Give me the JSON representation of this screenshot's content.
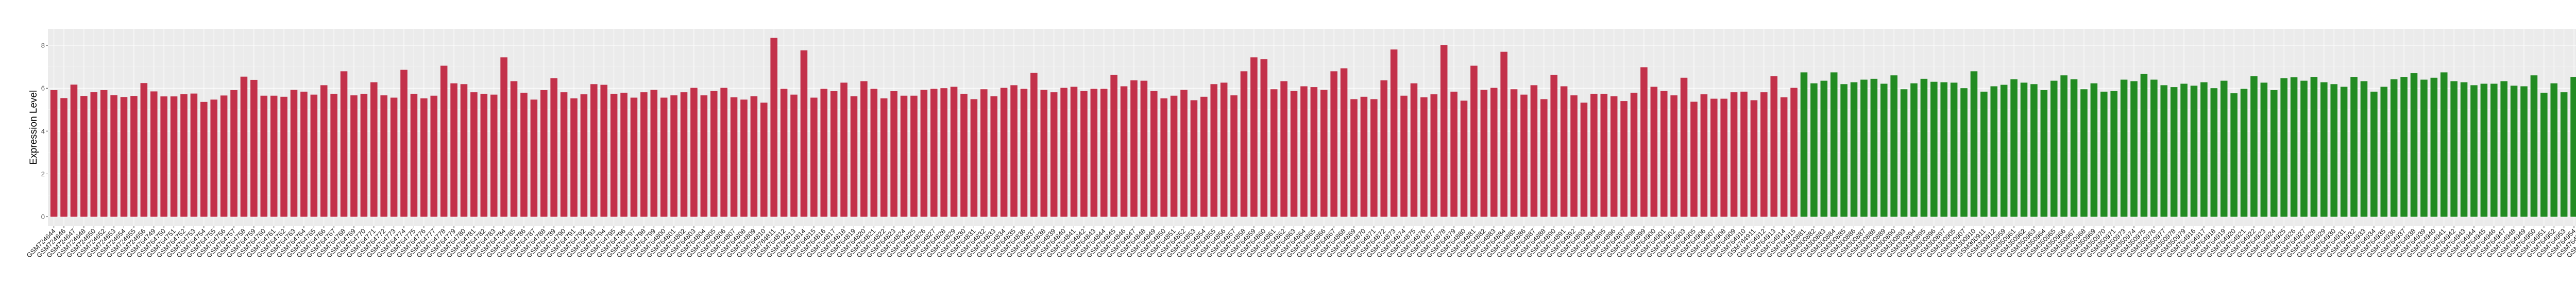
{
  "chart_data": {
    "type": "bar",
    "title": "",
    "xlabel": "",
    "ylabel": "Expression Level",
    "ylim": [
      -0.42,
      8.77
    ],
    "yticks": [
      0,
      2,
      4,
      6,
      8
    ],
    "grid": true,
    "panel_background": "#EBEBEB",
    "legend": "none",
    "color_groups": [
      {
        "color": "#C3314A",
        "from": "GSM724644",
        "to": "GSM764915"
      },
      {
        "color": "#228B22",
        "from": "GSM300881",
        "to": "GSM80749"
      }
    ],
    "categories": [
      "GSM724644",
      "GSM724646",
      "GSM724647",
      "GSM724648",
      "GSM724650",
      "GSM724652",
      "GSM724653",
      "GSM724654",
      "GSM724655",
      "GSM724656",
      "GSM764749",
      "GSM764750",
      "GSM764751",
      "GSM764752",
      "GSM764753",
      "GSM764754",
      "GSM764755",
      "GSM764756",
      "GSM764757",
      "GSM764758",
      "GSM764759",
      "GSM764760",
      "GSM764761",
      "GSM764762",
      "GSM764763",
      "GSM764764",
      "GSM764765",
      "GSM764766",
      "GSM764767",
      "GSM764768",
      "GSM764769",
      "GSM764770",
      "GSM764771",
      "GSM764772",
      "GSM764773",
      "GSM764774",
      "GSM764775",
      "GSM764776",
      "GSM764777",
      "GSM764778",
      "GSM764779",
      "GSM764780",
      "GSM764781",
      "GSM764782",
      "GSM764783",
      "GSM764784",
      "GSM764785",
      "GSM764786",
      "GSM764787",
      "GSM764788",
      "GSM764789",
      "GSM764790",
      "GSM764791",
      "GSM764792",
      "GSM764793",
      "GSM764794",
      "GSM764795",
      "GSM764796",
      "GSM764797",
      "GSM764798",
      "GSM764799",
      "GSM764800",
      "GSM764801",
      "GSM764802",
      "GSM764803",
      "GSM764804",
      "GSM764805",
      "GSM764806",
      "GSM764807",
      "GSM764808",
      "GSM764809",
      "GSM764810",
      "GSM764811",
      "GSM764812",
      "GSM764813",
      "GSM764814",
      "GSM764815",
      "GSM764816",
      "GSM764817",
      "GSM764818",
      "GSM764819",
      "GSM764820",
      "GSM764821",
      "GSM764822",
      "GSM764823",
      "GSM764824",
      "GSM764825",
      "GSM764826",
      "GSM764827",
      "GSM764828",
      "GSM764829",
      "GSM764830",
      "GSM764831",
      "GSM764832",
      "GSM764833",
      "GSM764834",
      "GSM764835",
      "GSM764836",
      "GSM764837",
      "GSM764838",
      "GSM764839",
      "GSM764840",
      "GSM764841",
      "GSM764842",
      "GSM764843",
      "GSM764844",
      "GSM764845",
      "GSM764846",
      "GSM764847",
      "GSM764848",
      "GSM764849",
      "GSM764850",
      "GSM764851",
      "GSM764852",
      "GSM764853",
      "GSM764854",
      "GSM764855",
      "GSM764856",
      "GSM764857",
      "GSM764858",
      "GSM764859",
      "GSM764860",
      "GSM764861",
      "GSM764862",
      "GSM764863",
      "GSM764864",
      "GSM764865",
      "GSM764866",
      "GSM764867",
      "GSM764868",
      "GSM764869",
      "GSM764870",
      "GSM764871",
      "GSM764872",
      "GSM764873",
      "GSM764874",
      "GSM764875",
      "GSM764876",
      "GSM764877",
      "GSM764878",
      "GSM764879",
      "GSM764880",
      "GSM764881",
      "GSM764882",
      "GSM764883",
      "GSM764884",
      "GSM764885",
      "GSM764886",
      "GSM764887",
      "GSM764888",
      "GSM764890",
      "GSM764891",
      "GSM764892",
      "GSM764893",
      "GSM764894",
      "GSM764895",
      "GSM764896",
      "GSM764897",
      "GSM764898",
      "GSM764899",
      "GSM764900",
      "GSM764901",
      "GSM764902",
      "GSM764903",
      "GSM764905",
      "GSM764906",
      "GSM764907",
      "GSM764908",
      "GSM764909",
      "GSM764910",
      "GSM764911",
      "GSM764912",
      "GSM764913",
      "GSM764914",
      "GSM764915",
      "GSM300881",
      "GSM300882",
      "GSM300883",
      "GSM300884",
      "GSM300885",
      "GSM300886",
      "GSM300887",
      "GSM300888",
      "GSM300889",
      "GSM300890",
      "GSM300893",
      "GSM300894",
      "GSM300895",
      "GSM300896",
      "GSM300897",
      "GSM300905",
      "GSM300907",
      "GSM300910",
      "GSM300911",
      "GSM300912",
      "GSM350959",
      "GSM350961",
      "GSM350962",
      "GSM350963",
      "GSM350964",
      "GSM350965",
      "GSM350966",
      "GSM350967",
      "GSM350968",
      "GSM350969",
      "GSM350970",
      "GSM350971",
      "GSM350973",
      "GSM350974",
      "GSM350975",
      "GSM350976",
      "GSM350977",
      "GSM350978",
      "GSM350979",
      "GSM764916",
      "GSM764917",
      "GSM764918",
      "GSM764919",
      "GSM764920",
      "GSM764921",
      "GSM764922",
      "GSM764923",
      "GSM764924",
      "GSM764925",
      "GSM764926",
      "GSM764927",
      "GSM764928",
      "GSM764929",
      "GSM764930",
      "GSM764931",
      "GSM764932",
      "GSM764933",
      "GSM764934",
      "GSM764935",
      "GSM764936",
      "GSM764937",
      "GSM764938",
      "GSM764939",
      "GSM764940",
      "GSM764941",
      "GSM764942",
      "GSM764943",
      "GSM764944",
      "GSM764945",
      "GSM764946",
      "GSM764947",
      "GSM764948",
      "GSM764949",
      "GSM764950",
      "GSM764951",
      "GSM764952",
      "GSM764953",
      "GSM764954",
      "GSM764955",
      "GSM764956",
      "GSM764957",
      "GSM764958",
      "GSM764959",
      "GSM764960",
      "GSM80748",
      "GSM80749"
    ],
    "values": [
      5.91,
      5.54,
      6.17,
      5.64,
      5.82,
      5.91,
      5.68,
      5.59,
      5.64,
      6.24,
      5.85,
      5.62,
      5.62,
      5.73,
      5.75,
      5.36,
      5.47,
      5.66,
      5.91,
      6.54,
      6.39,
      5.65,
      5.65,
      5.6,
      5.93,
      5.84,
      5.7,
      6.14,
      5.74,
      6.79,
      5.67,
      5.74,
      6.28,
      5.67,
      5.56,
      6.86,
      5.74,
      5.53,
      5.65,
      7.05,
      6.23,
      6.19,
      5.81,
      5.74,
      5.7,
      7.44,
      6.33,
      5.79,
      5.47,
      5.91,
      6.47,
      5.81,
      5.53,
      5.72,
      6.19,
      6.16,
      5.74,
      5.79,
      5.56,
      5.81,
      5.93,
      5.56,
      5.67,
      5.81,
      6.02,
      5.67,
      5.88,
      6.02,
      5.58,
      5.47,
      5.63,
      5.33,
      8.35,
      5.98,
      5.7,
      7.77,
      5.56,
      5.98,
      5.86,
      6.26,
      5.63,
      6.33,
      5.98,
      5.53,
      5.86,
      5.65,
      5.65,
      5.93,
      5.98,
      6.0,
      6.07,
      5.74,
      5.49,
      5.95,
      5.63,
      6.02,
      6.14,
      5.98,
      6.72,
      5.93,
      5.81,
      6.02,
      6.07,
      5.88,
      5.98,
      5.98,
      6.63,
      6.09,
      6.37,
      6.35,
      5.88,
      5.53,
      5.65,
      5.93,
      5.44,
      5.6,
      6.19,
      6.26,
      5.67,
      6.79,
      7.44,
      7.35,
      5.95,
      6.33,
      5.88,
      6.09,
      6.05,
      5.93,
      6.79,
      6.93,
      5.49,
      5.6,
      5.49,
      6.37,
      7.81,
      5.65,
      6.23,
      5.58,
      5.72,
      8.02,
      5.84,
      5.42,
      7.05,
      5.93,
      6.02,
      7.7,
      5.95,
      5.7,
      6.14,
      5.49,
      6.63,
      6.09,
      5.67,
      5.33,
      5.74,
      5.74,
      5.63,
      5.4,
      5.79,
      6.98,
      6.07,
      5.88,
      5.67,
      6.49,
      5.37,
      5.72,
      5.51,
      5.51,
      5.81,
      5.84,
      5.44,
      5.81,
      6.56,
      5.58,
      6.02,
      6.74,
      6.23,
      6.35,
      6.74,
      6.19,
      6.28,
      6.4,
      6.44,
      6.21,
      6.6,
      5.95,
      6.23,
      6.44,
      6.3,
      6.28,
      6.26,
      6.0,
      6.79,
      5.84,
      6.09,
      6.16,
      6.42,
      6.26,
      6.19,
      5.91,
      6.35,
      6.6,
      6.42,
      5.95,
      6.23,
      5.84,
      5.88,
      6.4,
      6.33,
      6.67,
      6.4,
      6.14,
      6.05,
      6.21,
      6.12,
      6.28,
      6.0,
      6.35,
      5.77,
      5.98,
      6.56,
      6.26,
      5.91,
      6.47,
      6.51,
      6.35,
      6.53,
      6.28,
      6.19,
      6.07,
      6.53,
      6.33,
      5.84,
      6.07,
      6.42,
      6.53,
      6.7,
      6.4,
      6.49,
      6.74,
      6.33,
      6.28,
      6.14,
      6.21,
      6.21,
      6.33,
      6.12,
      6.09,
      6.6,
      5.79,
      6.23,
      5.81,
      6.53,
      6.84,
      5.74,
      6.84,
      6.72,
      5.88,
      6.33,
      6.4,
      5.58
    ]
  }
}
